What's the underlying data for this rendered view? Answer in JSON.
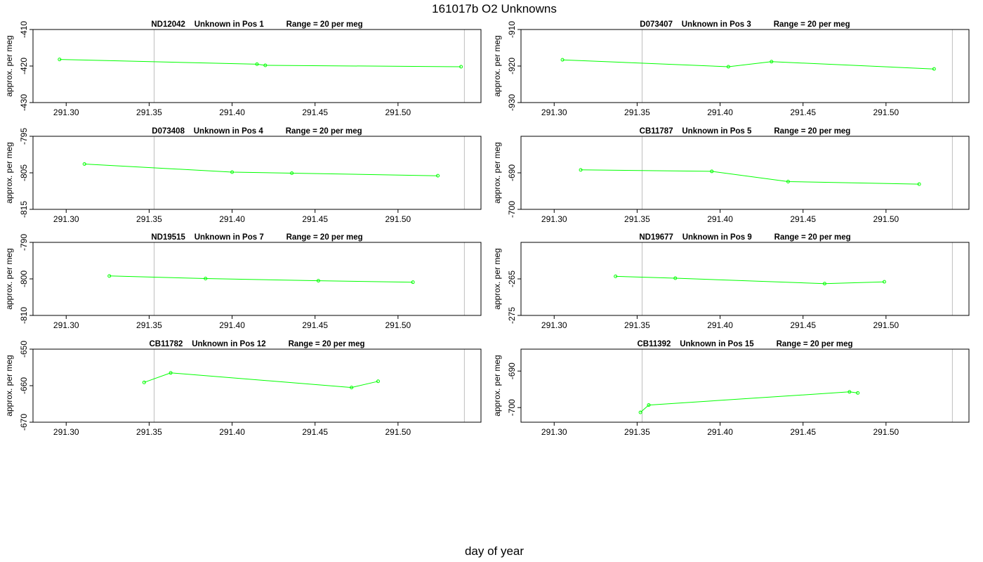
{
  "title": "161017b  O2 Unknowns",
  "xlabel": "day of year",
  "line_color": "#00ff00",
  "refline_color": "#bebebe",
  "chart_data": [
    {
      "type": "line",
      "title": "ND12042    Unknown in Pos 1          Range = 20 per meg",
      "ylabel": "approx. per meg",
      "xlim": [
        291.28,
        291.55
      ],
      "ylim": [
        -430,
        -410
      ],
      "xticks": [
        291.3,
        291.35,
        291.4,
        291.45,
        291.5
      ],
      "yticks": [
        -430,
        -420,
        -410
      ],
      "reflines": [
        291.353,
        291.54
      ],
      "x": [
        291.296,
        291.415,
        291.42,
        291.538
      ],
      "y": [
        -418.2,
        -419.5,
        -419.8,
        -420.2
      ]
    },
    {
      "type": "line",
      "title": "D073407    Unknown in Pos 3          Range = 20 per meg",
      "ylabel": "approx. per meg",
      "xlim": [
        291.28,
        291.55
      ],
      "ylim": [
        -930,
        -910
      ],
      "xticks": [
        291.3,
        291.35,
        291.4,
        291.45,
        291.5
      ],
      "yticks": [
        -930,
        -920,
        -910
      ],
      "reflines": [
        291.353,
        291.54
      ],
      "x": [
        291.305,
        291.405,
        291.431,
        291.529
      ],
      "y": [
        -918.3,
        -920.2,
        -918.8,
        -920.8
      ]
    },
    {
      "type": "line",
      "title": "D073408    Unknown in Pos 4          Range = 20 per meg",
      "ylabel": "approx. per meg",
      "xlim": [
        291.28,
        291.55
      ],
      "ylim": [
        -815,
        -795
      ],
      "xticks": [
        291.3,
        291.35,
        291.4,
        291.45,
        291.5
      ],
      "yticks": [
        -815,
        -805,
        -795
      ],
      "reflines": [
        291.353,
        291.54
      ],
      "x": [
        291.311,
        291.4,
        291.436,
        291.524
      ],
      "y": [
        -802.6,
        -804.8,
        -805.1,
        -805.8
      ]
    },
    {
      "type": "line",
      "title": "CB11787    Unknown in Pos 5          Range = 20 per meg",
      "ylabel": "approx. per meg",
      "xlim": [
        291.28,
        291.55
      ],
      "ylim": [
        -700,
        -680
      ],
      "xticks": [
        291.3,
        291.35,
        291.4,
        291.45,
        291.5
      ],
      "yticks": [
        -700,
        -690
      ],
      "reflines": [
        291.353,
        291.54
      ],
      "x": [
        291.316,
        291.395,
        291.441,
        291.52
      ],
      "y": [
        -689.2,
        -689.6,
        -692.4,
        -693.1
      ]
    },
    {
      "type": "line",
      "title": "ND19515    Unknown in Pos 7          Range = 20 per meg",
      "ylabel": "approx. per meg",
      "xlim": [
        291.28,
        291.55
      ],
      "ylim": [
        -810,
        -790
      ],
      "xticks": [
        291.3,
        291.35,
        291.4,
        291.45,
        291.5
      ],
      "yticks": [
        -810,
        -800,
        -790
      ],
      "reflines": [
        291.353,
        291.54
      ],
      "x": [
        291.326,
        291.384,
        291.452,
        291.509
      ],
      "y": [
        -799.2,
        -799.9,
        -800.5,
        -800.9
      ]
    },
    {
      "type": "line",
      "title": "ND19677    Unknown in Pos 9          Range = 20 per meg",
      "ylabel": "approx. per meg",
      "xlim": [
        291.28,
        291.55
      ],
      "ylim": [
        -275,
        -255
      ],
      "xticks": [
        291.3,
        291.35,
        291.4,
        291.45,
        291.5
      ],
      "yticks": [
        -275,
        -265
      ],
      "reflines": [
        291.353,
        291.54
      ],
      "x": [
        291.337,
        291.373,
        291.463,
        291.499
      ],
      "y": [
        -264.3,
        -264.8,
        -266.3,
        -265.8
      ]
    },
    {
      "type": "line",
      "title": "CB11782    Unknown in Pos 12          Range = 20 per meg",
      "ylabel": "approx. per meg",
      "xlim": [
        291.28,
        291.55
      ],
      "ylim": [
        -670,
        -650
      ],
      "xticks": [
        291.3,
        291.35,
        291.4,
        291.45,
        291.5
      ],
      "yticks": [
        -670,
        -660,
        -650
      ],
      "reflines": [
        291.353,
        291.54
      ],
      "x": [
        291.347,
        291.363,
        291.472,
        291.488
      ],
      "y": [
        -659.1,
        -656.5,
        -660.5,
        -658.8
      ]
    },
    {
      "type": "line",
      "title": "CB11392    Unknown in Pos 15          Range = 20 per meg",
      "ylabel": "approx. per meg",
      "xlim": [
        291.28,
        291.55
      ],
      "ylim": [
        -704,
        -684
      ],
      "xticks": [
        291.3,
        291.35,
        291.4,
        291.45,
        291.5
      ],
      "yticks": [
        -700,
        -690
      ],
      "reflines": [
        291.353,
        291.54
      ],
      "x": [
        291.352,
        291.357,
        291.478,
        291.483
      ],
      "y": [
        -701.3,
        -699.3,
        -695.7,
        -696.0
      ]
    }
  ]
}
